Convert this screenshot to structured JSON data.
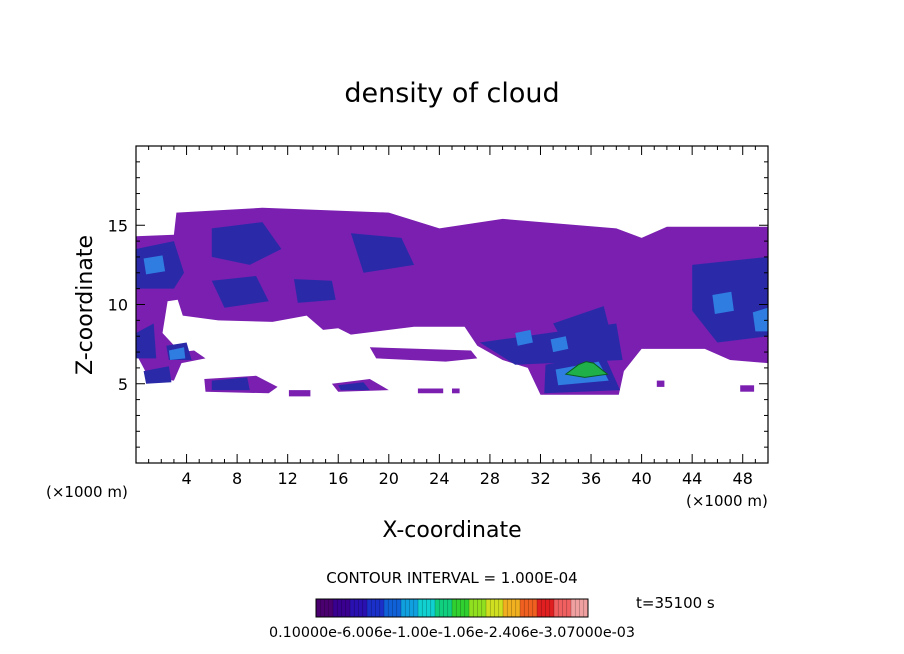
{
  "chart_data": {
    "type": "heatmap",
    "title": "density of cloud",
    "xlabel": "X-coordinate",
    "ylabel": "Z-coordinate",
    "x_unit": "(×1000 m)",
    "x_unit_right": "(×1000 m)",
    "xlim": [
      0,
      50
    ],
    "ylim": [
      0,
      20
    ],
    "xticks": [
      4,
      8,
      12,
      16,
      20,
      24,
      28,
      32,
      36,
      40,
      44,
      48
    ],
    "yticks": [
      5,
      10,
      15
    ],
    "contour_interval": "CONTOUR INTERVAL = 1.000E-04",
    "time_label": "t=35100 s",
    "colorbar_labels_text": "0.10000e-6.006e-1.00e-1.06e-2.406e-3.07000e-03",
    "colors": {
      "low": "#7a1fb0",
      "mid_low": "#2a2aa8",
      "mid": "#2f7de0",
      "high": "#1fb04a"
    },
    "colorbar_colors": [
      "#4b0070",
      "#3a0090",
      "#2a10b0",
      "#1a30c8",
      "#1060d8",
      "#10a0e0",
      "#10d0d0",
      "#10d080",
      "#30d030",
      "#90e020",
      "#d0e020",
      "#f0b020",
      "#f06020",
      "#e02020",
      "#f06060",
      "#f0a0a0"
    ],
    "regions": [
      {
        "level": "low",
        "pts": [
          [
            0,
            14.3
          ],
          [
            3,
            14.4
          ],
          [
            3.2,
            15.8
          ],
          [
            10,
            16.1
          ],
          [
            20,
            15.8
          ],
          [
            24,
            14.8
          ],
          [
            29,
            15.4
          ],
          [
            38,
            14.8
          ],
          [
            40,
            14.2
          ],
          [
            42,
            14.9
          ],
          [
            50,
            14.9
          ],
          [
            50,
            6.3
          ],
          [
            47,
            6.5
          ],
          [
            45,
            7.2
          ],
          [
            40,
            7.2
          ],
          [
            38.6,
            5.8
          ],
          [
            38.2,
            4.3
          ],
          [
            32,
            4.3
          ],
          [
            31,
            6
          ],
          [
            29,
            6.5
          ],
          [
            27,
            7.4
          ],
          [
            26,
            8.6
          ],
          [
            22,
            8.6
          ],
          [
            17,
            8.1
          ],
          [
            16,
            8.5
          ],
          [
            14.8,
            8.4
          ],
          [
            13.5,
            9.3
          ],
          [
            10.8,
            8.9
          ],
          [
            6.5,
            9.0
          ],
          [
            3.7,
            9.3
          ],
          [
            3.3,
            10.3
          ],
          [
            2.5,
            10.2
          ],
          [
            2.1,
            8.2
          ],
          [
            3.5,
            7.0
          ],
          [
            4.6,
            7.1
          ],
          [
            5.5,
            6.6
          ],
          [
            3.6,
            6.3
          ],
          [
            3,
            5.2
          ],
          [
            1,
            5.4
          ],
          [
            0.2,
            6.6
          ],
          [
            0,
            7.5
          ]
        ]
      },
      {
        "level": "low",
        "pts": [
          [
            18.5,
            7.3
          ],
          [
            26.5,
            7.1
          ],
          [
            27,
            6.6
          ],
          [
            24.5,
            6.4
          ],
          [
            19,
            6.6
          ]
        ]
      },
      {
        "level": "low",
        "pts": [
          [
            5.4,
            5.3
          ],
          [
            9.5,
            5.5
          ],
          [
            11.2,
            4.8
          ],
          [
            10.5,
            4.4
          ],
          [
            5.5,
            4.5
          ]
        ]
      },
      {
        "level": "low",
        "pts": [
          [
            15.5,
            5.0
          ],
          [
            18.5,
            5.3
          ],
          [
            20,
            4.6
          ],
          [
            16,
            4.5
          ]
        ]
      },
      {
        "level": "low",
        "pts": [
          [
            22.3,
            4.7
          ],
          [
            24.3,
            4.7
          ],
          [
            24.3,
            4.4
          ],
          [
            22.3,
            4.4
          ]
        ]
      },
      {
        "level": "low",
        "pts": [
          [
            25,
            4.7
          ],
          [
            25.6,
            4.7
          ],
          [
            25.6,
            4.4
          ],
          [
            25,
            4.4
          ]
        ]
      },
      {
        "level": "low",
        "pts": [
          [
            12.1,
            4.6
          ],
          [
            13.8,
            4.6
          ],
          [
            13.8,
            4.2
          ],
          [
            12.1,
            4.2
          ]
        ]
      },
      {
        "level": "low",
        "pts": [
          [
            47.8,
            4.9
          ],
          [
            48.9,
            4.9
          ],
          [
            48.9,
            4.5
          ],
          [
            47.8,
            4.5
          ]
        ]
      },
      {
        "level": "low",
        "pts": [
          [
            41.2,
            5.2
          ],
          [
            41.8,
            5.2
          ],
          [
            41.8,
            4.8
          ],
          [
            41.2,
            4.8
          ]
        ]
      },
      {
        "level": "mid_low",
        "pts": [
          [
            0,
            13.5
          ],
          [
            3,
            14.0
          ],
          [
            3.8,
            12
          ],
          [
            3,
            11
          ],
          [
            0,
            11
          ]
        ]
      },
      {
        "level": "mid_low",
        "pts": [
          [
            6,
            14.8
          ],
          [
            10,
            15.2
          ],
          [
            11.5,
            13.5
          ],
          [
            9,
            12.5
          ],
          [
            6,
            13
          ]
        ]
      },
      {
        "level": "mid_low",
        "pts": [
          [
            17,
            14.5
          ],
          [
            21,
            14.2
          ],
          [
            22,
            12.5
          ],
          [
            18,
            12.0
          ]
        ]
      },
      {
        "level": "mid_low",
        "pts": [
          [
            6,
            11.5
          ],
          [
            9.5,
            11.8
          ],
          [
            10.5,
            10.2
          ],
          [
            7,
            9.8
          ]
        ]
      },
      {
        "level": "mid_low",
        "pts": [
          [
            12.5,
            11.6
          ],
          [
            15.5,
            11.5
          ],
          [
            15.8,
            10.3
          ],
          [
            12.8,
            10.1
          ]
        ]
      },
      {
        "level": "mid_low",
        "pts": [
          [
            27.2,
            7.6
          ],
          [
            38,
            8.8
          ],
          [
            38.5,
            6.5
          ],
          [
            30,
            6.2
          ]
        ]
      },
      {
        "level": "mid_low",
        "pts": [
          [
            44,
            12.5
          ],
          [
            50,
            13
          ],
          [
            50,
            8
          ],
          [
            46,
            7.6
          ],
          [
            44,
            9.6
          ]
        ]
      },
      {
        "level": "mid_low",
        "pts": [
          [
            33,
            8.8
          ],
          [
            37,
            9.9
          ],
          [
            37.8,
            7.4
          ],
          [
            34,
            7.4
          ]
        ]
      },
      {
        "level": "mid_low",
        "pts": [
          [
            0,
            8.2
          ],
          [
            1.4,
            8.8
          ],
          [
            1.6,
            6.6
          ],
          [
            0,
            6.6
          ]
        ]
      },
      {
        "level": "mid_low",
        "pts": [
          [
            2.4,
            7.4
          ],
          [
            4,
            7.6
          ],
          [
            4.4,
            6.5
          ],
          [
            2.6,
            6.5
          ]
        ]
      },
      {
        "level": "mid_low",
        "pts": [
          [
            0.6,
            5.8
          ],
          [
            2.6,
            6.1
          ],
          [
            2.8,
            5.1
          ],
          [
            0.8,
            5.0
          ]
        ]
      },
      {
        "level": "mid_low",
        "pts": [
          [
            6,
            5.2
          ],
          [
            8.8,
            5.4
          ],
          [
            9,
            4.6
          ],
          [
            6,
            4.6
          ]
        ]
      },
      {
        "level": "mid_low",
        "pts": [
          [
            16,
            4.9
          ],
          [
            18,
            5.1
          ],
          [
            18.5,
            4.6
          ],
          [
            16.2,
            4.6
          ]
        ]
      },
      {
        "level": "mid_low",
        "pts": [
          [
            32.4,
            6.2
          ],
          [
            37,
            6.9
          ],
          [
            38.3,
            4.6
          ],
          [
            32.3,
            4.4
          ]
        ]
      },
      {
        "level": "mid",
        "pts": [
          [
            0.6,
            12.9
          ],
          [
            2.1,
            13.1
          ],
          [
            2.3,
            12.1
          ],
          [
            0.8,
            11.9
          ]
        ]
      },
      {
        "level": "mid",
        "pts": [
          [
            45.6,
            10.6
          ],
          [
            47.1,
            10.8
          ],
          [
            47.3,
            9.6
          ],
          [
            45.8,
            9.4
          ]
        ]
      },
      {
        "level": "mid",
        "pts": [
          [
            48.8,
            9.5
          ],
          [
            50,
            9.8
          ],
          [
            50,
            8.3
          ],
          [
            49,
            8.3
          ]
        ]
      },
      {
        "level": "mid",
        "pts": [
          [
            30,
            8.2
          ],
          [
            31.2,
            8.4
          ],
          [
            31.4,
            7.6
          ],
          [
            30.2,
            7.4
          ]
        ]
      },
      {
        "level": "mid",
        "pts": [
          [
            32.8,
            7.8
          ],
          [
            34,
            8.0
          ],
          [
            34.2,
            7.2
          ],
          [
            33,
            7.0
          ]
        ]
      },
      {
        "level": "mid",
        "pts": [
          [
            2.6,
            7.1
          ],
          [
            3.8,
            7.3
          ],
          [
            3.9,
            6.6
          ],
          [
            2.7,
            6.5
          ]
        ]
      },
      {
        "level": "mid",
        "pts": [
          [
            33.2,
            5.9
          ],
          [
            36.6,
            6.4
          ],
          [
            37.4,
            5.2
          ],
          [
            33.4,
            4.9
          ]
        ]
      },
      {
        "level": "high",
        "pts": [
          [
            34,
            5.6
          ],
          [
            35,
            6.2
          ],
          [
            35.6,
            6.4
          ],
          [
            36.2,
            6.3
          ],
          [
            37.3,
            5.6
          ],
          [
            35.5,
            5.4
          ]
        ]
      }
    ]
  }
}
